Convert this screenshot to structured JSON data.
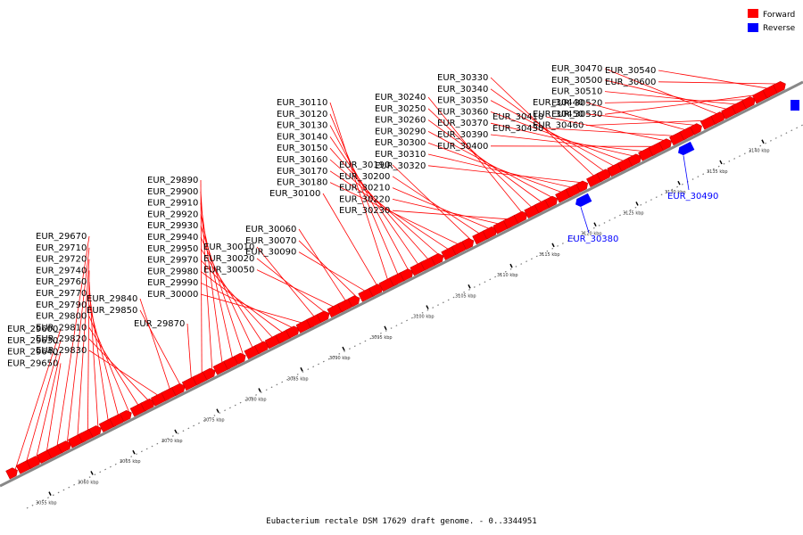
{
  "caption": "Eubacterium rectale DSM 17629 draft genome. - 0..3344951",
  "legend": [
    {
      "label": "Forward",
      "color": "#ff0000"
    },
    {
      "label": "Reverse",
      "color": "#0000ff"
    }
  ],
  "colors": {
    "forward": "#ff0000",
    "reverse": "#0000ff",
    "forward_line": "#ff0000",
    "reverse_line": "#0000ff"
  },
  "scale_ticks": [
    "3055 kbp",
    "3060 kbp",
    "3065 kbp",
    "3070 kbp",
    "3075 kbp",
    "3080 kbp",
    "3085 kbp",
    "3090 kbp",
    "3095 kbp",
    "3100 kbp",
    "3105 kbp",
    "3110 kbp",
    "3115 kbp",
    "3120 kbp",
    "3125 kbp",
    "3130 kbp",
    "3135 kbp",
    "3140 kbp"
  ],
  "forward_genes": [
    "EUR_29600",
    "EUR_29630",
    "EUR_29640",
    "EUR_29650",
    "EUR_29670",
    "EUR_29710",
    "EUR_29720",
    "EUR_29740",
    "EUR_29760",
    "EUR_29770",
    "EUR_29790",
    "EUR_29800",
    "EUR_29810",
    "EUR_29820",
    "EUR_29830",
    "EUR_29840",
    "EUR_29850",
    "EUR_29870",
    "EUR_29890",
    "EUR_29900",
    "EUR_29910",
    "EUR_29920",
    "EUR_29930",
    "EUR_29940",
    "EUR_29950",
    "EUR_29970",
    "EUR_29980",
    "EUR_29990",
    "EUR_30000",
    "EUR_30010",
    "EUR_30020",
    "EUR_30050",
    "EUR_30060",
    "EUR_30070",
    "EUR_30090",
    "EUR_30100",
    "EUR_30110",
    "EUR_30120",
    "EUR_30130",
    "EUR_30140",
    "EUR_30150",
    "EUR_30160",
    "EUR_30170",
    "EUR_30180",
    "EUR_30190",
    "EUR_30200",
    "EUR_30210",
    "EUR_30220",
    "EUR_30230",
    "EUR_30240",
    "EUR_30250",
    "EUR_30260",
    "EUR_30290",
    "EUR_30300",
    "EUR_30310",
    "EUR_30320",
    "EUR_30330",
    "EUR_30340",
    "EUR_30350",
    "EUR_30360",
    "EUR_30370",
    "EUR_30390",
    "EUR_30400",
    "EUR_30410",
    "EUR_30430",
    "EUR_30440",
    "EUR_30450",
    "EUR_30460",
    "EUR_30470",
    "EUR_30500",
    "EUR_30510",
    "EUR_30520",
    "EUR_30530",
    "EUR_30540",
    "EUR_30600"
  ],
  "reverse_genes": [
    "EUR_30380",
    "EUR_30490"
  ]
}
